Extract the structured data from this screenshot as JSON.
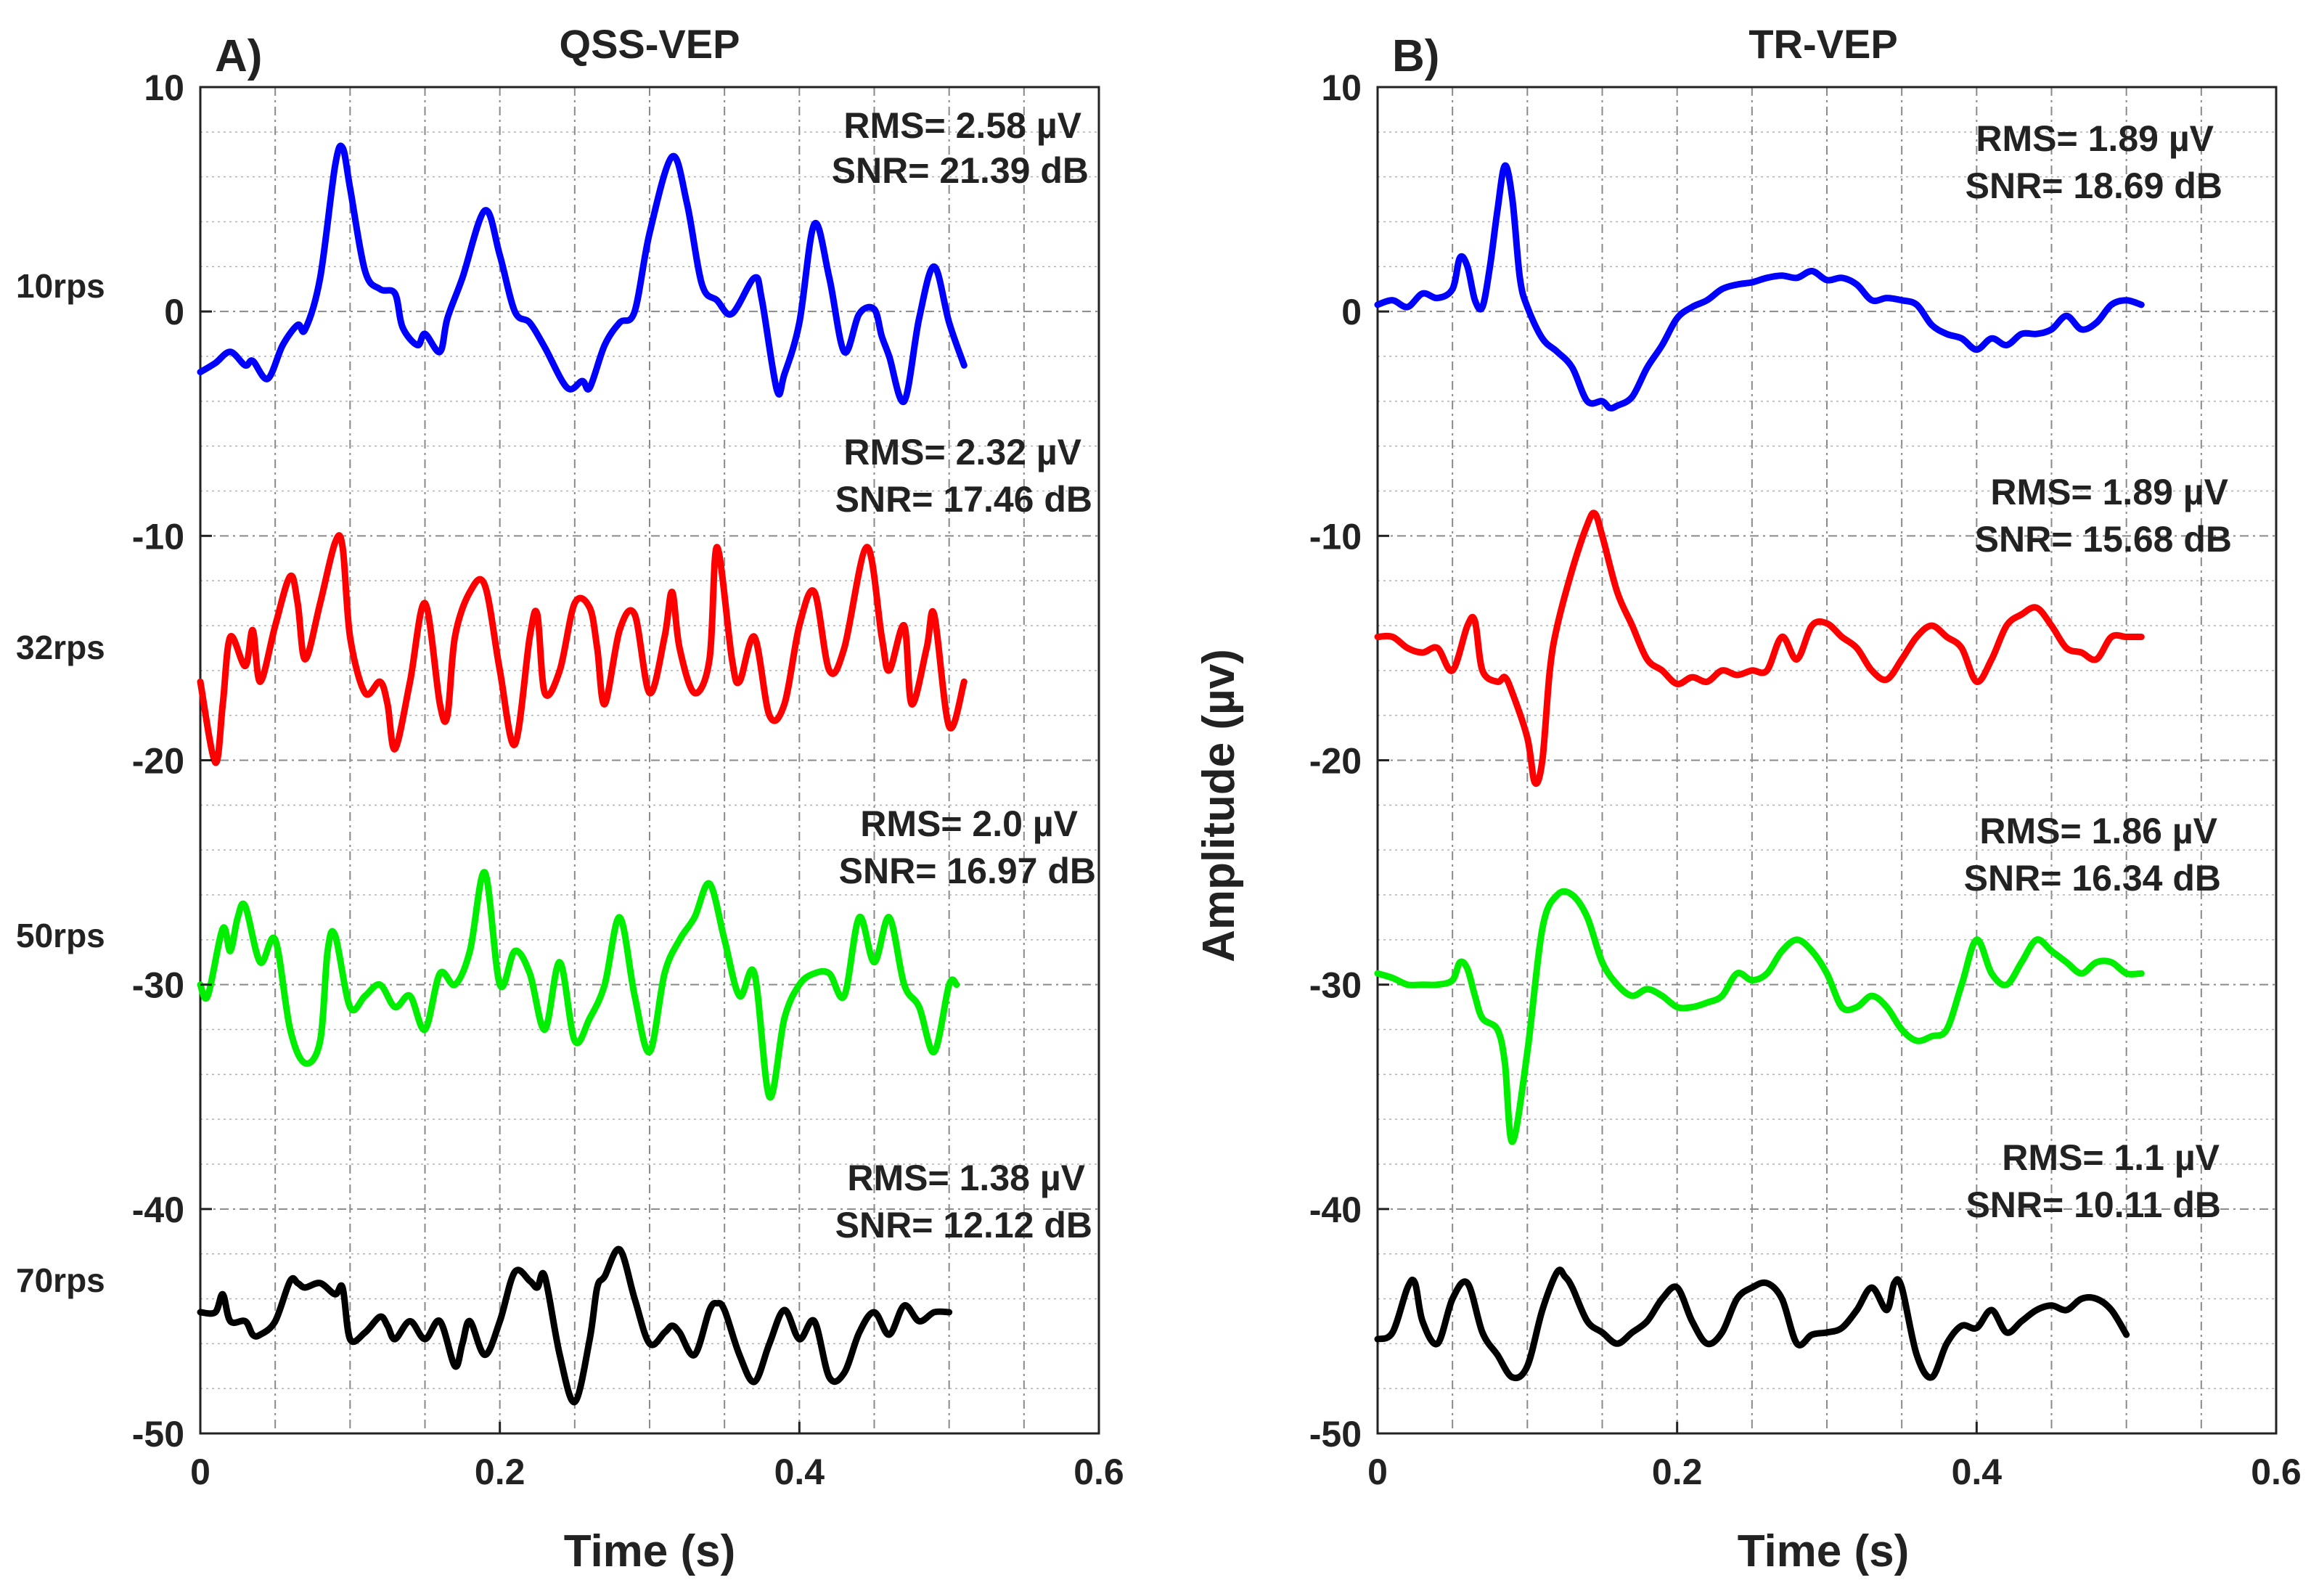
{
  "colors": {
    "10rps": "#0000ff",
    "32rps": "#ff0000",
    "50rps": "#00ee00",
    "70rps": "#000000",
    "axis": "#222222",
    "grid": "#8a8a8a"
  },
  "row_labels": [
    "10rps",
    "32rps",
    "50rps",
    "70rps"
  ],
  "chart_data": [
    {
      "type": "line",
      "panel_label": "A)",
      "title": "QSS-VEP",
      "xlabel": "Time (s)",
      "ylabel": "",
      "xlim": [
        0,
        0.6
      ],
      "ylim": [
        -50,
        10
      ],
      "xticks": [
        0,
        0.2,
        0.4,
        0.6
      ],
      "xtick_labels": [
        "0",
        "0.2",
        "0.4",
        "0.6"
      ],
      "yticks": [
        10,
        0,
        -10,
        -20,
        -30,
        -40,
        -50
      ],
      "ytick_labels": [
        "10",
        "0",
        "-10",
        "-20",
        "-30",
        "-40",
        "-50"
      ],
      "grid": true,
      "annotations": [
        {
          "rms": "RMS= 2.58 µV",
          "snr": "SNR= 21.39 dB",
          "series": "10rps"
        },
        {
          "rms": "RMS= 2.32 µV",
          "snr": "SNR= 17.46 dB",
          "series": "32rps"
        },
        {
          "rms": "RMS= 2.0 µV",
          "snr": "SNR= 16.97 dB",
          "series": "50rps"
        },
        {
          "rms": "RMS= 1.38 µV",
          "snr": "SNR= 12.12 dB",
          "series": "70rps"
        }
      ],
      "series": [
        {
          "name": "10rps",
          "x": [
            0,
            0.01,
            0.02,
            0.03,
            0.035,
            0.045,
            0.055,
            0.065,
            0.07,
            0.08,
            0.09,
            0.095,
            0.1,
            0.11,
            0.12,
            0.13,
            0.135,
            0.145,
            0.15,
            0.16,
            0.165,
            0.175,
            0.19,
            0.2,
            0.21,
            0.22,
            0.23,
            0.245,
            0.255,
            0.26,
            0.27,
            0.28,
            0.29,
            0.3,
            0.315,
            0.325,
            0.335,
            0.345,
            0.355,
            0.37,
            0.375,
            0.385,
            0.39,
            0.4,
            0.41,
            0.42,
            0.43,
            0.44,
            0.45,
            0.455,
            0.46,
            0.47,
            0.48,
            0.49,
            0.5,
            0.51
          ],
          "y": [
            -2.7,
            -2.3,
            -1.8,
            -2.4,
            -2.2,
            -3,
            -1.5,
            -0.6,
            -0.8,
            1.5,
            6.5,
            7.3,
            5.5,
            1.8,
            1,
            0.8,
            -0.7,
            -1.5,
            -1,
            -1.8,
            -0.3,
            1.5,
            4.5,
            2.5,
            0,
            -0.5,
            -1.6,
            -3.4,
            -3.1,
            -3.4,
            -1.5,
            -0.5,
            0,
            3.5,
            6.9,
            4.8,
            1.2,
            0.5,
            -0.1,
            1.5,
            0.5,
            -3.5,
            -2.8,
            -0.5,
            3.9,
            1.5,
            -1.8,
            -0.1,
            0.1,
            -1.1,
            -2,
            -4,
            -0.3,
            2,
            -0.5,
            -2.4
          ]
        },
        {
          "name": "32rps",
          "x": [
            0,
            0.01,
            0.015,
            0.02,
            0.03,
            0.035,
            0.04,
            0.05,
            0.06,
            0.065,
            0.07,
            0.08,
            0.09,
            0.095,
            0.1,
            0.11,
            0.12,
            0.125,
            0.13,
            0.14,
            0.15,
            0.16,
            0.165,
            0.17,
            0.18,
            0.19,
            0.2,
            0.21,
            0.22,
            0.225,
            0.23,
            0.24,
            0.25,
            0.26,
            0.265,
            0.27,
            0.28,
            0.29,
            0.3,
            0.31,
            0.315,
            0.32,
            0.33,
            0.34,
            0.345,
            0.355,
            0.36,
            0.37,
            0.38,
            0.39,
            0.4,
            0.41,
            0.42,
            0.43,
            0.445,
            0.455,
            0.46,
            0.47,
            0.475,
            0.485,
            0.49,
            0.5,
            0.51
          ],
          "y": [
            -16.5,
            -20.1,
            -17.5,
            -14.5,
            -15.8,
            -14.2,
            -16.5,
            -14,
            -11.8,
            -13,
            -15.5,
            -13,
            -10.3,
            -10.5,
            -14.5,
            -17,
            -16.5,
            -17.5,
            -19.5,
            -16.5,
            -13,
            -17.5,
            -18,
            -14.5,
            -12.5,
            -12.2,
            -16,
            -19.3,
            -14.5,
            -13.5,
            -17,
            -16,
            -13,
            -13.2,
            -15,
            -17.5,
            -14.2,
            -13.5,
            -17,
            -14.5,
            -12.5,
            -15,
            -17,
            -15.5,
            -10.5,
            -15.5,
            -16.5,
            -14.5,
            -18,
            -17.5,
            -14,
            -12.5,
            -16,
            -15,
            -10.5,
            -14.5,
            -16,
            -14,
            -17.5,
            -15,
            -13.5,
            -18.5,
            -16.5
          ]
        },
        {
          "name": "50rps",
          "x": [
            0,
            0.005,
            0.015,
            0.02,
            0.025,
            0.03,
            0.04,
            0.05,
            0.06,
            0.07,
            0.08,
            0.085,
            0.09,
            0.1,
            0.11,
            0.12,
            0.13,
            0.14,
            0.15,
            0.16,
            0.17,
            0.18,
            0.19,
            0.2,
            0.21,
            0.22,
            0.23,
            0.24,
            0.25,
            0.26,
            0.27,
            0.28,
            0.29,
            0.3,
            0.31,
            0.32,
            0.33,
            0.34,
            0.35,
            0.36,
            0.37,
            0.38,
            0.39,
            0.4,
            0.41,
            0.42,
            0.43,
            0.44,
            0.45,
            0.46,
            0.47,
            0.48,
            0.49,
            0.5,
            0.505
          ],
          "y": [
            -30,
            -30.5,
            -27.5,
            -28.5,
            -27,
            -26.5,
            -29,
            -28,
            -32,
            -33.5,
            -32.5,
            -28.5,
            -27.8,
            -31,
            -30.5,
            -30,
            -31,
            -30.5,
            -32,
            -29.5,
            -30,
            -28.5,
            -25,
            -30,
            -28.5,
            -29.5,
            -32,
            -29,
            -32.5,
            -31.5,
            -30,
            -27,
            -30.5,
            -33,
            -29.5,
            -28,
            -27,
            -25.5,
            -28,
            -30.5,
            -29.5,
            -35,
            -31.5,
            -30,
            -29.5,
            -29.5,
            -30.5,
            -27,
            -29,
            -27,
            -30,
            -31,
            -33,
            -30,
            -30
          ]
        },
        {
          "name": "70rps",
          "x": [
            0,
            0.01,
            0.015,
            0.02,
            0.03,
            0.035,
            0.04,
            0.05,
            0.06,
            0.065,
            0.07,
            0.08,
            0.09,
            0.095,
            0.1,
            0.11,
            0.12,
            0.125,
            0.13,
            0.14,
            0.15,
            0.16,
            0.17,
            0.175,
            0.18,
            0.19,
            0.2,
            0.21,
            0.22,
            0.225,
            0.23,
            0.24,
            0.25,
            0.26,
            0.265,
            0.27,
            0.28,
            0.29,
            0.3,
            0.31,
            0.315,
            0.32,
            0.33,
            0.34,
            0.345,
            0.35,
            0.36,
            0.37,
            0.38,
            0.39,
            0.4,
            0.41,
            0.42,
            0.43,
            0.44,
            0.45,
            0.46,
            0.47,
            0.48,
            0.49,
            0.5
          ],
          "y": [
            -44.6,
            -44.6,
            -43.8,
            -45,
            -45,
            -45.6,
            -45.6,
            -45,
            -43.2,
            -43.3,
            -43.5,
            -43.3,
            -43.8,
            -43.5,
            -45.8,
            -45.5,
            -44.8,
            -45.2,
            -45.8,
            -45,
            -45.8,
            -45,
            -47,
            -46,
            -45,
            -46.5,
            -45,
            -42.8,
            -43.2,
            -43.5,
            -43,
            -46.5,
            -48.6,
            -45.8,
            -43.5,
            -43,
            -41.8,
            -44,
            -46,
            -45.5,
            -45.2,
            -45.5,
            -46.5,
            -44.5,
            -44.2,
            -44.5,
            -46.5,
            -47.7,
            -46,
            -44.5,
            -45.8,
            -45,
            -47.5,
            -47.3,
            -45.5,
            -44.6,
            -45.6,
            -44.3,
            -45,
            -44.6,
            -44.6
          ]
        }
      ]
    },
    {
      "type": "line",
      "panel_label": "B)",
      "title": "TR-VEP",
      "xlabel": "Time (s)",
      "ylabel": "Amplitude (µv)",
      "xlim": [
        0,
        0.6
      ],
      "ylim": [
        -50,
        10
      ],
      "xticks": [
        0,
        0.2,
        0.4,
        0.6
      ],
      "xtick_labels": [
        "0",
        "0.2",
        "0.4",
        "0.6"
      ],
      "yticks": [
        10,
        0,
        -10,
        -20,
        -30,
        -40,
        -50
      ],
      "ytick_labels": [
        "10",
        "0",
        "-10",
        "-20",
        "-30",
        "-40",
        "-50"
      ],
      "grid": true,
      "annotations": [
        {
          "rms": "RMS= 1.89 µV",
          "snr": "SNR= 18.69 dB",
          "series": "10rps"
        },
        {
          "rms": "RMS= 1.89 µV",
          "snr": "SNR= 15.68 dB",
          "series": "32rps"
        },
        {
          "rms": "RMS= 1.86 µV",
          "snr": "SNR= 16.34 dB",
          "series": "50rps"
        },
        {
          "rms": "RMS= 1.1 µV",
          "snr": "SNR= 10.11 dB",
          "series": "70rps"
        }
      ],
      "series": [
        {
          "name": "10rps",
          "x": [
            0,
            0.01,
            0.02,
            0.03,
            0.04,
            0.05,
            0.055,
            0.06,
            0.065,
            0.07,
            0.075,
            0.08,
            0.085,
            0.09,
            0.095,
            0.1,
            0.11,
            0.12,
            0.13,
            0.14,
            0.15,
            0.155,
            0.16,
            0.17,
            0.18,
            0.19,
            0.2,
            0.21,
            0.22,
            0.23,
            0.24,
            0.25,
            0.26,
            0.27,
            0.28,
            0.29,
            0.3,
            0.31,
            0.32,
            0.33,
            0.34,
            0.35,
            0.36,
            0.37,
            0.38,
            0.39,
            0.4,
            0.41,
            0.42,
            0.43,
            0.44,
            0.45,
            0.46,
            0.47,
            0.48,
            0.49,
            0.5,
            0.51
          ],
          "y": [
            0.3,
            0.5,
            0.2,
            0.8,
            0.6,
            1,
            2.4,
            2,
            0.5,
            0.2,
            2,
            4.5,
            6.5,
            5,
            1.5,
            0.2,
            -1.2,
            -1.8,
            -2.5,
            -4,
            -4,
            -4.3,
            -4.2,
            -3.8,
            -2.5,
            -1.5,
            -0.3,
            0.2,
            0.5,
            1,
            1.2,
            1.3,
            1.5,
            1.6,
            1.5,
            1.8,
            1.4,
            1.5,
            1.2,
            0.5,
            0.6,
            0.5,
            0.3,
            -0.6,
            -1,
            -1.2,
            -1.7,
            -1.2,
            -1.5,
            -1,
            -1,
            -0.8,
            -0.2,
            -0.8,
            -0.5,
            0.3,
            0.5,
            0.3
          ]
        },
        {
          "name": "32rps",
          "x": [
            0,
            0.01,
            0.02,
            0.03,
            0.04,
            0.05,
            0.06,
            0.065,
            0.07,
            0.08,
            0.085,
            0.09,
            0.1,
            0.105,
            0.11,
            0.115,
            0.12,
            0.13,
            0.14,
            0.145,
            0.15,
            0.16,
            0.17,
            0.18,
            0.19,
            0.2,
            0.21,
            0.22,
            0.23,
            0.24,
            0.25,
            0.26,
            0.27,
            0.28,
            0.29,
            0.3,
            0.31,
            0.32,
            0.33,
            0.34,
            0.35,
            0.36,
            0.37,
            0.38,
            0.39,
            0.4,
            0.41,
            0.42,
            0.43,
            0.44,
            0.45,
            0.46,
            0.47,
            0.48,
            0.49,
            0.5,
            0.51
          ],
          "y": [
            -14.5,
            -14.5,
            -15,
            -15.2,
            -15,
            -16,
            -14,
            -13.8,
            -16,
            -16.5,
            -16.3,
            -17,
            -19,
            -21,
            -20,
            -16,
            -14,
            -11.5,
            -9.5,
            -9,
            -10,
            -12.5,
            -14,
            -15.5,
            -16,
            -16.6,
            -16.3,
            -16.5,
            -16,
            -16.2,
            -16,
            -16,
            -14.5,
            -15.5,
            -14,
            -13.9,
            -14.5,
            -15,
            -16,
            -16.4,
            -15.5,
            -14.5,
            -14,
            -14.5,
            -15,
            -16.5,
            -15.5,
            -14,
            -13.5,
            -13.2,
            -14,
            -15,
            -15.2,
            -15.5,
            -14.5,
            -14.5,
            -14.5
          ]
        },
        {
          "name": "50rps",
          "x": [
            0,
            0.01,
            0.02,
            0.03,
            0.04,
            0.05,
            0.055,
            0.06,
            0.065,
            0.07,
            0.08,
            0.085,
            0.09,
            0.1,
            0.11,
            0.12,
            0.13,
            0.14,
            0.15,
            0.16,
            0.17,
            0.18,
            0.19,
            0.2,
            0.21,
            0.22,
            0.23,
            0.24,
            0.25,
            0.26,
            0.27,
            0.28,
            0.29,
            0.3,
            0.31,
            0.32,
            0.33,
            0.34,
            0.35,
            0.36,
            0.37,
            0.38,
            0.39,
            0.4,
            0.41,
            0.42,
            0.43,
            0.44,
            0.45,
            0.46,
            0.47,
            0.48,
            0.49,
            0.5,
            0.51
          ],
          "y": [
            -29.5,
            -29.7,
            -30,
            -30,
            -30,
            -29.8,
            -29,
            -29.3,
            -30.5,
            -31.5,
            -32,
            -33.5,
            -37,
            -33,
            -27.5,
            -26,
            -26,
            -27,
            -29,
            -30,
            -30.5,
            -30.2,
            -30.5,
            -31,
            -31,
            -30.8,
            -30.5,
            -29.5,
            -29.8,
            -29.5,
            -28.5,
            -28,
            -28.5,
            -29.5,
            -31,
            -31,
            -30.5,
            -31,
            -32,
            -32.5,
            -32.3,
            -32,
            -30,
            -28,
            -29.5,
            -30,
            -29,
            -28,
            -28.5,
            -29,
            -29.5,
            -29,
            -29,
            -29.5,
            -29.5
          ]
        },
        {
          "name": "70rps",
          "x": [
            0,
            0.01,
            0.02,
            0.025,
            0.03,
            0.04,
            0.05,
            0.06,
            0.07,
            0.08,
            0.09,
            0.1,
            0.11,
            0.12,
            0.125,
            0.13,
            0.14,
            0.15,
            0.16,
            0.17,
            0.18,
            0.19,
            0.2,
            0.21,
            0.22,
            0.23,
            0.24,
            0.25,
            0.26,
            0.27,
            0.28,
            0.29,
            0.3,
            0.31,
            0.32,
            0.33,
            0.34,
            0.345,
            0.35,
            0.36,
            0.37,
            0.38,
            0.39,
            0.4,
            0.41,
            0.42,
            0.43,
            0.44,
            0.45,
            0.46,
            0.47,
            0.48,
            0.49,
            0.5
          ],
          "y": [
            -45.8,
            -45.5,
            -43.5,
            -43.3,
            -45,
            -46,
            -44,
            -43.3,
            -45.5,
            -46.5,
            -47.5,
            -47,
            -44.5,
            -42.8,
            -43,
            -43.5,
            -45,
            -45.5,
            -46,
            -45.5,
            -45,
            -44,
            -43.5,
            -45,
            -46,
            -45.5,
            -44,
            -43.5,
            -43.3,
            -44,
            -46,
            -45.6,
            -45.5,
            -45.3,
            -44.5,
            -43.5,
            -44.5,
            -43.3,
            -43.5,
            -46.5,
            -47.5,
            -46,
            -45.2,
            -45.3,
            -44.5,
            -45.5,
            -45,
            -44.5,
            -44.3,
            -44.5,
            -44,
            -44,
            -44.5,
            -45.6
          ]
        }
      ]
    }
  ]
}
